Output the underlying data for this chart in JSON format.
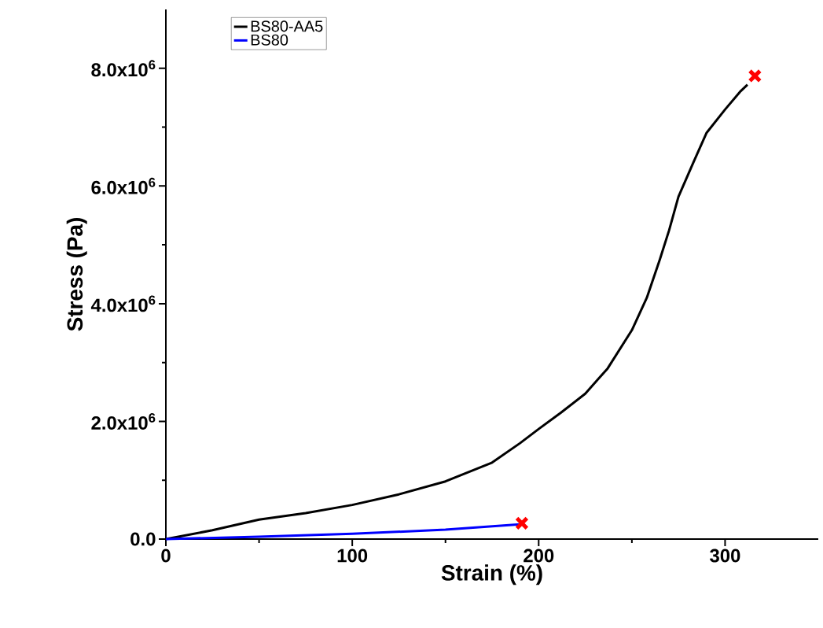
{
  "chart_data": {
    "type": "line",
    "xlabel": "Strain (%)",
    "ylabel": "Stress (Pa)",
    "xlim": [
      0,
      350
    ],
    "ylim": [
      0,
      9000000
    ],
    "xticks": [
      0,
      100,
      200,
      300
    ],
    "yticks": [
      {
        "value": 0,
        "label": "0.0"
      },
      {
        "value": 2000000,
        "label": "2.0x10$^{6}$"
      },
      {
        "value": 4000000,
        "label": "4.0x10$^{6}$"
      },
      {
        "value": 6000000,
        "label": "6.0x10$^{6}$"
      },
      {
        "value": 8000000,
        "label": "8.0x10$^{6}$"
      }
    ],
    "legend": "top left",
    "grid": false,
    "series": [
      {
        "name": "BS80-AA5",
        "color": "#000000",
        "x": [
          0,
          25,
          50,
          75,
          100,
          125,
          150,
          175,
          190,
          200,
          212,
          225,
          237,
          250,
          258,
          265,
          270,
          275,
          283,
          290,
          300,
          308,
          312
        ],
        "values": [
          0,
          150000,
          330000,
          440000,
          580000,
          760000,
          980000,
          1300000,
          1630000,
          1870000,
          2150000,
          2470000,
          2900000,
          3550000,
          4100000,
          4750000,
          5250000,
          5820000,
          6400000,
          6900000,
          7300000,
          7600000,
          7720000
        ]
      },
      {
        "name": "BS80",
        "color": "#0000ff",
        "x": [
          0,
          50,
          100,
          150,
          190
        ],
        "values": [
          0,
          40000,
          90000,
          160000,
          250000
        ]
      },
      {
        "type": "scatter",
        "marker": "cross",
        "color": "#ff0000",
        "x": [
          316,
          191
        ],
        "values": [
          7870000,
          270000
        ]
      }
    ]
  }
}
